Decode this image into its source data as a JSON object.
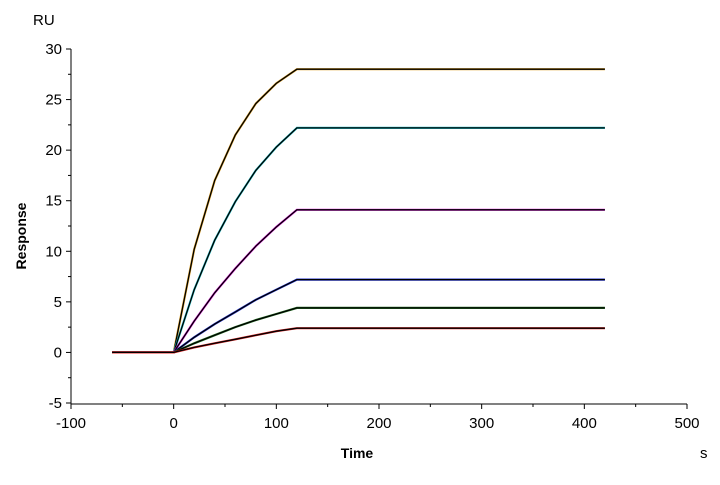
{
  "chart_data": {
    "type": "line",
    "title": "",
    "xlabel": "Time",
    "xunit": "s",
    "ylabel": "Response",
    "yunit": "RU",
    "xlim": [
      -100,
      500
    ],
    "ylim": [
      -5,
      30
    ],
    "xticks": [
      -100,
      0,
      100,
      200,
      300,
      400,
      500
    ],
    "yticks": [
      -5,
      0,
      5,
      10,
      15,
      20,
      25,
      30
    ],
    "grid": false,
    "legend": "none",
    "fit_color": "#000000",
    "x": [
      -60,
      -40,
      -20,
      0,
      20,
      40,
      60,
      80,
      100,
      120,
      170,
      220,
      270,
      320,
      370,
      420
    ],
    "series": [
      {
        "color": "#e0a020",
        "values": [
          0,
          0,
          0,
          0,
          10.2,
          17.0,
          21.5,
          24.6,
          26.6,
          28.0,
          28.0,
          28.0,
          28.0,
          28.0,
          28.0,
          28.0
        ]
      },
      {
        "color": "#20c0c8",
        "values": [
          0,
          0,
          0,
          0,
          6.2,
          11.1,
          14.9,
          18.0,
          20.3,
          22.2,
          22.2,
          22.2,
          22.2,
          22.2,
          22.2,
          22.2
        ]
      },
      {
        "color": "#e020e0",
        "values": [
          0,
          0,
          0,
          0,
          3.1,
          5.9,
          8.3,
          10.5,
          12.4,
          14.1,
          14.1,
          14.1,
          14.1,
          14.1,
          14.1,
          14.1
        ]
      },
      {
        "color": "#2030d0",
        "values": [
          0,
          0,
          0,
          0,
          1.5,
          2.8,
          4.0,
          5.2,
          6.2,
          7.2,
          7.2,
          7.2,
          7.2,
          7.2,
          7.2,
          7.2
        ]
      },
      {
        "color": "#207020",
        "values": [
          0,
          0,
          0,
          0,
          0.9,
          1.7,
          2.5,
          3.2,
          3.8,
          4.4,
          4.4,
          4.4,
          4.4,
          4.4,
          4.4,
          4.4
        ]
      },
      {
        "color": "#e02020",
        "values": [
          0,
          0,
          0,
          0,
          0.5,
          0.9,
          1.3,
          1.7,
          2.1,
          2.4,
          2.4,
          2.4,
          2.4,
          2.4,
          2.4,
          2.4
        ]
      }
    ]
  }
}
